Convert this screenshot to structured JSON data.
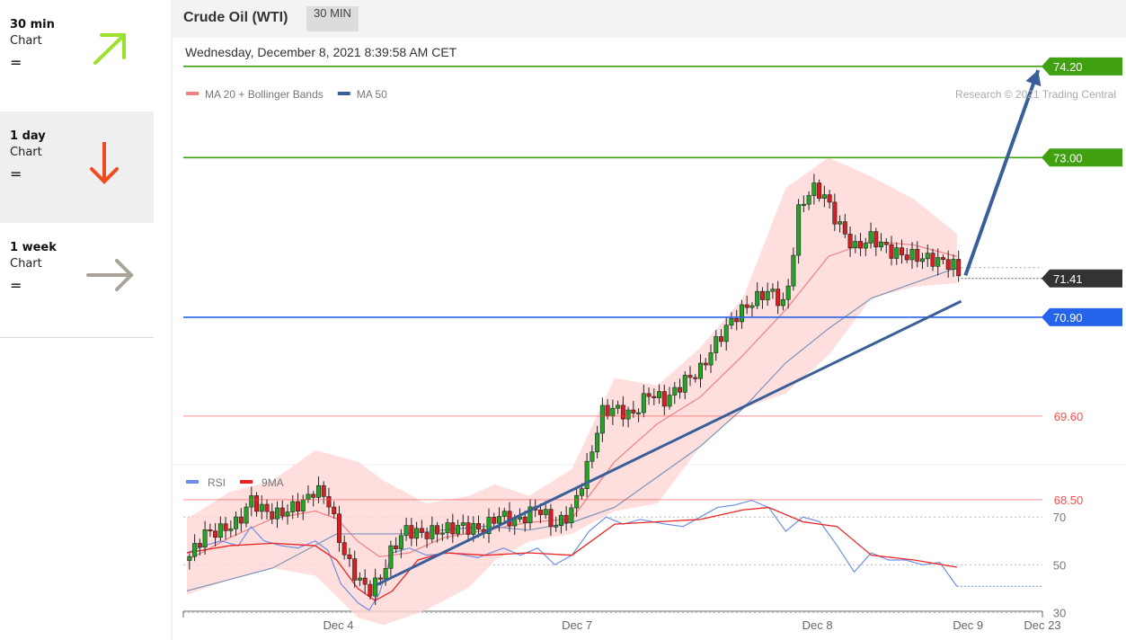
{
  "sidebar": {
    "items": [
      {
        "period": "30 min",
        "label": "Chart",
        "state": "=",
        "arrow": "up",
        "color": "#9be02a"
      },
      {
        "period": "1 day",
        "label": "Chart",
        "state": "=",
        "arrow": "down",
        "color": "#f04a1e"
      },
      {
        "period": "1 week",
        "label": "Chart",
        "state": "=",
        "arrow": "right",
        "color": "#aaa39a"
      }
    ]
  },
  "header": {
    "title": "Crude Oil (WTI)",
    "timeframe": "30 MIN",
    "datetime": "Wednesday, December 8, 2021 8:39:58 AM CET"
  },
  "chart_data": [
    {
      "type": "candlestick",
      "legend": [
        {
          "name": "MA 20 + Bollinger Bands",
          "color": "#f08080"
        },
        {
          "name": "MA 50",
          "color": "#3a5f98"
        }
      ],
      "credit": "Research © 2021 Trading Central",
      "ylim": [
        66.5,
        74.6
      ],
      "xlim": [
        0,
        1
      ],
      "x_ticks": [
        {
          "label": "Dec 4",
          "x": 0.177
        },
        {
          "label": "Dec 7",
          "x": 0.456
        },
        {
          "label": "Dec 8",
          "x": 0.737
        },
        {
          "label": "Dec 9",
          "x": 0.913
        },
        {
          "label": "Dec 23",
          "x": 1.0
        }
      ],
      "levels": [
        {
          "value": 74.2,
          "label": "74.20",
          "color": "#3fa010",
          "kind": "resistance"
        },
        {
          "value": 73.0,
          "label": "73.00",
          "color": "#3fa010",
          "kind": "resistance"
        },
        {
          "value": 71.41,
          "label": "71.41",
          "color": "#333333",
          "kind": "last"
        },
        {
          "value": 70.9,
          "label": "70.90",
          "color": "#2563eb",
          "kind": "pivot"
        },
        {
          "value": 69.6,
          "label": "69.60",
          "color": "#ff4b4b",
          "kind": "support"
        },
        {
          "value": 68.5,
          "label": "68.50",
          "color": "#ff4b4b",
          "kind": "support"
        }
      ],
      "trendline": [
        {
          "x": 0.222,
          "y": 67.38
        },
        {
          "x": 0.905,
          "y": 71.11
        }
      ],
      "projection": [
        {
          "x": 0.91,
          "y": 71.45
        },
        {
          "x": 0.995,
          "y": 74.15
        }
      ],
      "close_series": [
        {
          "x": 0.0,
          "y": 67.7
        },
        {
          "x": 0.02,
          "y": 68.05
        },
        {
          "x": 0.04,
          "y": 68.1
        },
        {
          "x": 0.06,
          "y": 68.2
        },
        {
          "x": 0.075,
          "y": 68.5
        },
        {
          "x": 0.09,
          "y": 68.35
        },
        {
          "x": 0.105,
          "y": 68.3
        },
        {
          "x": 0.125,
          "y": 68.4
        },
        {
          "x": 0.14,
          "y": 68.5
        },
        {
          "x": 0.15,
          "y": 68.65
        },
        {
          "x": 0.165,
          "y": 68.5
        },
        {
          "x": 0.175,
          "y": 68.1
        },
        {
          "x": 0.185,
          "y": 67.75
        },
        {
          "x": 0.2,
          "y": 67.45
        },
        {
          "x": 0.213,
          "y": 67.3
        },
        {
          "x": 0.225,
          "y": 67.45
        },
        {
          "x": 0.24,
          "y": 67.85
        },
        {
          "x": 0.255,
          "y": 68.1
        },
        {
          "x": 0.275,
          "y": 68.05
        },
        {
          "x": 0.3,
          "y": 68.1
        },
        {
          "x": 0.32,
          "y": 68.15
        },
        {
          "x": 0.345,
          "y": 68.1
        },
        {
          "x": 0.365,
          "y": 68.3
        },
        {
          "x": 0.385,
          "y": 68.2
        },
        {
          "x": 0.41,
          "y": 68.4
        },
        {
          "x": 0.43,
          "y": 68.15
        },
        {
          "x": 0.45,
          "y": 68.35
        },
        {
          "x": 0.47,
          "y": 69.0
        },
        {
          "x": 0.485,
          "y": 69.65
        },
        {
          "x": 0.5,
          "y": 69.7
        },
        {
          "x": 0.52,
          "y": 69.6
        },
        {
          "x": 0.54,
          "y": 69.9
        },
        {
          "x": 0.56,
          "y": 69.8
        },
        {
          "x": 0.58,
          "y": 70.05
        },
        {
          "x": 0.6,
          "y": 70.2
        },
        {
          "x": 0.62,
          "y": 70.6
        },
        {
          "x": 0.64,
          "y": 70.9
        },
        {
          "x": 0.66,
          "y": 71.1
        },
        {
          "x": 0.68,
          "y": 71.25
        },
        {
          "x": 0.7,
          "y": 71.05
        },
        {
          "x": 0.715,
          "y": 72.3
        },
        {
          "x": 0.73,
          "y": 72.6
        },
        {
          "x": 0.745,
          "y": 72.5
        },
        {
          "x": 0.76,
          "y": 72.15
        },
        {
          "x": 0.78,
          "y": 71.8
        },
        {
          "x": 0.8,
          "y": 71.95
        },
        {
          "x": 0.825,
          "y": 71.75
        },
        {
          "x": 0.85,
          "y": 71.7
        },
        {
          "x": 0.875,
          "y": 71.65
        },
        {
          "x": 0.895,
          "y": 71.6
        },
        {
          "x": 0.905,
          "y": 71.41
        }
      ],
      "ma20": [
        {
          "x": 0.0,
          "y": 67.7
        },
        {
          "x": 0.05,
          "y": 68.0
        },
        {
          "x": 0.1,
          "y": 68.25
        },
        {
          "x": 0.15,
          "y": 68.35
        },
        {
          "x": 0.175,
          "y": 68.25
        },
        {
          "x": 0.2,
          "y": 67.95
        },
        {
          "x": 0.225,
          "y": 67.75
        },
        {
          "x": 0.26,
          "y": 67.8
        },
        {
          "x": 0.3,
          "y": 68.0
        },
        {
          "x": 0.35,
          "y": 68.1
        },
        {
          "x": 0.4,
          "y": 68.2
        },
        {
          "x": 0.45,
          "y": 68.25
        },
        {
          "x": 0.5,
          "y": 69.0
        },
        {
          "x": 0.55,
          "y": 69.5
        },
        {
          "x": 0.6,
          "y": 69.85
        },
        {
          "x": 0.65,
          "y": 70.4
        },
        {
          "x": 0.7,
          "y": 71.0
        },
        {
          "x": 0.75,
          "y": 71.7
        },
        {
          "x": 0.8,
          "y": 71.9
        },
        {
          "x": 0.85,
          "y": 71.85
        },
        {
          "x": 0.9,
          "y": 71.7
        }
      ],
      "bollinger": [
        {
          "x": 0.0,
          "upper": 68.25,
          "lower": 67.25
        },
        {
          "x": 0.05,
          "upper": 68.6,
          "lower": 67.45
        },
        {
          "x": 0.1,
          "upper": 68.75,
          "lower": 67.6
        },
        {
          "x": 0.15,
          "upper": 69.15,
          "lower": 67.5
        },
        {
          "x": 0.2,
          "upper": 69.0,
          "lower": 66.95
        },
        {
          "x": 0.23,
          "upper": 68.75,
          "lower": 66.85
        },
        {
          "x": 0.28,
          "upper": 68.45,
          "lower": 67.05
        },
        {
          "x": 0.33,
          "upper": 68.55,
          "lower": 67.35
        },
        {
          "x": 0.36,
          "upper": 68.7,
          "lower": 67.7
        },
        {
          "x": 0.4,
          "upper": 68.55,
          "lower": 67.95
        },
        {
          "x": 0.45,
          "upper": 68.9,
          "lower": 68.05
        },
        {
          "x": 0.5,
          "upper": 70.1,
          "lower": 68.35
        },
        {
          "x": 0.55,
          "upper": 70.0,
          "lower": 68.45
        },
        {
          "x": 0.6,
          "upper": 70.5,
          "lower": 69.2
        },
        {
          "x": 0.65,
          "upper": 71.15,
          "lower": 69.7
        },
        {
          "x": 0.7,
          "upper": 72.6,
          "lower": 69.9
        },
        {
          "x": 0.75,
          "upper": 73.0,
          "lower": 70.4
        },
        {
          "x": 0.8,
          "upper": 72.75,
          "lower": 71.15
        },
        {
          "x": 0.85,
          "upper": 72.45,
          "lower": 71.3
        },
        {
          "x": 0.9,
          "upper": 72.0,
          "lower": 71.35
        }
      ],
      "ma50": [
        {
          "x": 0.0,
          "y": 67.3
        },
        {
          "x": 0.05,
          "y": 67.45
        },
        {
          "x": 0.1,
          "y": 67.6
        },
        {
          "x": 0.15,
          "y": 67.9
        },
        {
          "x": 0.175,
          "y": 68.05
        },
        {
          "x": 0.2,
          "y": 68.05
        },
        {
          "x": 0.25,
          "y": 68.05
        },
        {
          "x": 0.3,
          "y": 68.1
        },
        {
          "x": 0.35,
          "y": 68.15
        },
        {
          "x": 0.4,
          "y": 68.1
        },
        {
          "x": 0.45,
          "y": 68.2
        },
        {
          "x": 0.5,
          "y": 68.4
        },
        {
          "x": 0.55,
          "y": 68.8
        },
        {
          "x": 0.6,
          "y": 69.2
        },
        {
          "x": 0.65,
          "y": 69.7
        },
        {
          "x": 0.7,
          "y": 70.3
        },
        {
          "x": 0.75,
          "y": 70.75
        },
        {
          "x": 0.8,
          "y": 71.15
        },
        {
          "x": 0.85,
          "y": 71.35
        },
        {
          "x": 0.9,
          "y": 71.55
        }
      ]
    },
    {
      "type": "line",
      "legend": [
        {
          "name": "RSI",
          "color": "#6c8ee6"
        },
        {
          "name": "9MA",
          "color": "#ee2222"
        }
      ],
      "ylim": [
        20,
        84
      ],
      "y_ticks": [
        70,
        50,
        30
      ],
      "series": [
        {
          "name": "RSI",
          "values": [
            {
              "x": 0.0,
              "y": 55
            },
            {
              "x": 0.02,
              "y": 58
            },
            {
              "x": 0.04,
              "y": 60
            },
            {
              "x": 0.06,
              "y": 58
            },
            {
              "x": 0.075,
              "y": 66
            },
            {
              "x": 0.09,
              "y": 60
            },
            {
              "x": 0.11,
              "y": 58
            },
            {
              "x": 0.13,
              "y": 57
            },
            {
              "x": 0.15,
              "y": 60
            },
            {
              "x": 0.165,
              "y": 56
            },
            {
              "x": 0.18,
              "y": 42
            },
            {
              "x": 0.2,
              "y": 34
            },
            {
              "x": 0.213,
              "y": 31
            },
            {
              "x": 0.225,
              "y": 38
            },
            {
              "x": 0.24,
              "y": 55
            },
            {
              "x": 0.26,
              "y": 57
            },
            {
              "x": 0.28,
              "y": 54
            },
            {
              "x": 0.31,
              "y": 55
            },
            {
              "x": 0.34,
              "y": 53
            },
            {
              "x": 0.37,
              "y": 57
            },
            {
              "x": 0.39,
              "y": 54
            },
            {
              "x": 0.41,
              "y": 57
            },
            {
              "x": 0.43,
              "y": 50
            },
            {
              "x": 0.45,
              "y": 54
            },
            {
              "x": 0.47,
              "y": 64
            },
            {
              "x": 0.49,
              "y": 70
            },
            {
              "x": 0.51,
              "y": 67
            },
            {
              "x": 0.53,
              "y": 69
            },
            {
              "x": 0.56,
              "y": 67
            },
            {
              "x": 0.58,
              "y": 66
            },
            {
              "x": 0.6,
              "y": 70
            },
            {
              "x": 0.62,
              "y": 74
            },
            {
              "x": 0.64,
              "y": 75
            },
            {
              "x": 0.66,
              "y": 77
            },
            {
              "x": 0.68,
              "y": 74
            },
            {
              "x": 0.7,
              "y": 64
            },
            {
              "x": 0.72,
              "y": 70
            },
            {
              "x": 0.74,
              "y": 68
            },
            {
              "x": 0.76,
              "y": 58
            },
            {
              "x": 0.78,
              "y": 47
            },
            {
              "x": 0.8,
              "y": 55
            },
            {
              "x": 0.82,
              "y": 52
            },
            {
              "x": 0.84,
              "y": 52
            },
            {
              "x": 0.86,
              "y": 50
            },
            {
              "x": 0.88,
              "y": 51
            },
            {
              "x": 0.9,
              "y": 41
            }
          ]
        },
        {
          "name": "9MA",
          "values": [
            {
              "x": 0.0,
              "y": 55
            },
            {
              "x": 0.05,
              "y": 58
            },
            {
              "x": 0.1,
              "y": 59
            },
            {
              "x": 0.15,
              "y": 58
            },
            {
              "x": 0.175,
              "y": 52
            },
            {
              "x": 0.2,
              "y": 40
            },
            {
              "x": 0.22,
              "y": 35
            },
            {
              "x": 0.24,
              "y": 39
            },
            {
              "x": 0.27,
              "y": 52
            },
            {
              "x": 0.3,
              "y": 55
            },
            {
              "x": 0.35,
              "y": 54
            },
            {
              "x": 0.4,
              "y": 55
            },
            {
              "x": 0.45,
              "y": 54
            },
            {
              "x": 0.5,
              "y": 67
            },
            {
              "x": 0.55,
              "y": 68
            },
            {
              "x": 0.6,
              "y": 69
            },
            {
              "x": 0.65,
              "y": 73
            },
            {
              "x": 0.68,
              "y": 74
            },
            {
              "x": 0.72,
              "y": 68
            },
            {
              "x": 0.76,
              "y": 66
            },
            {
              "x": 0.8,
              "y": 54
            },
            {
              "x": 0.85,
              "y": 52
            },
            {
              "x": 0.9,
              "y": 49
            }
          ]
        }
      ]
    }
  ]
}
